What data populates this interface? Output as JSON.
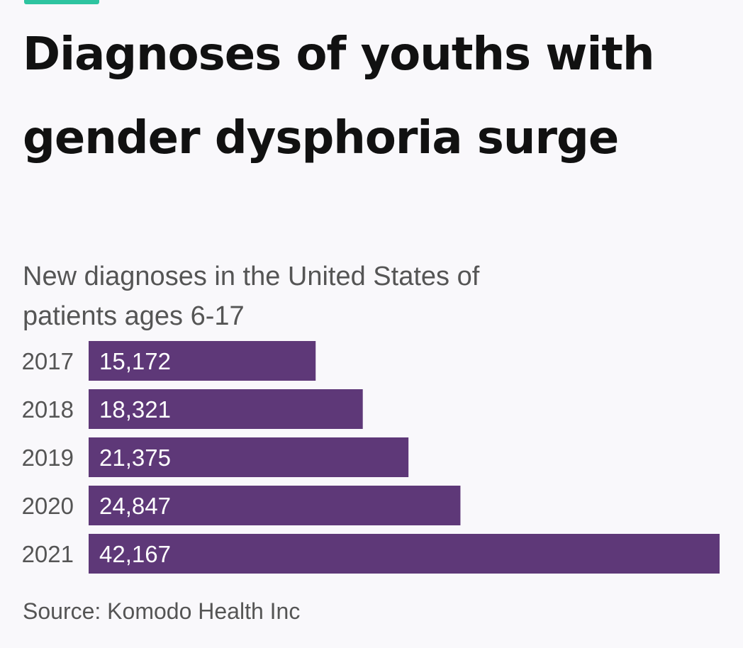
{
  "header": {
    "title": "Diagnoses of youths with gender dysphoria surge",
    "subtitle": "New diagnoses in the United States of patients ages 6-17",
    "accent_color": "#2ec4a0"
  },
  "footer": {
    "source": "Source: Komodo Health Inc"
  },
  "colors": {
    "bar": "#5e3878",
    "bar_label": "#ffffff",
    "category_label": "#555555",
    "background": "#f9f8fb"
  },
  "chart_data": {
    "type": "bar",
    "orientation": "horizontal",
    "title": "Diagnoses of youths with gender dysphoria surge",
    "subtitle": "New diagnoses in the United States of patients ages 6-17",
    "categories": [
      "2017",
      "2018",
      "2019",
      "2020",
      "2021"
    ],
    "values": [
      15172,
      18321,
      21375,
      24847,
      42167
    ],
    "value_labels": [
      "15,172",
      "18,321",
      "21,375",
      "24,847",
      "42,167"
    ],
    "xlim": [
      0,
      42167
    ],
    "xlabel": "",
    "ylabel": "",
    "grid": false,
    "legend": "none"
  }
}
